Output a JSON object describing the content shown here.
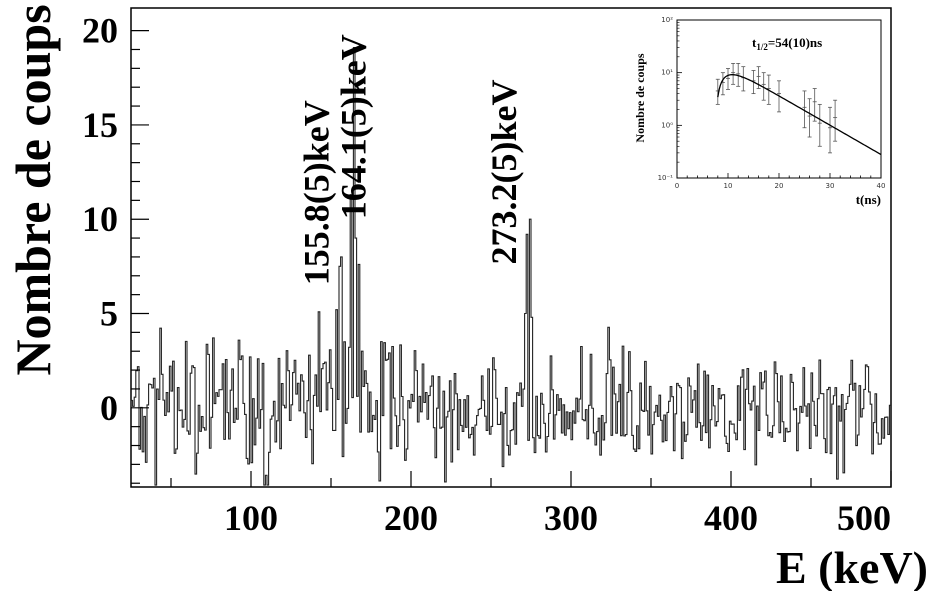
{
  "chart_data": [
    {
      "type": "histogram",
      "xlabel": "E (keV)",
      "ylabel": "Nombre de coups",
      "xlim": [
        25,
        500
      ],
      "ylim": [
        -4.2,
        21.2
      ],
      "x_ticks": [
        100,
        200,
        300,
        400,
        500
      ],
      "y_ticks": [
        0,
        5,
        10,
        15,
        20
      ],
      "grid": false,
      "annotations": [
        {
          "text": "155.8(5)keV",
          "x": 155.8,
          "y": 6.5
        },
        {
          "text": "164.1(5)keV",
          "x": 164.1,
          "y": 10.0
        },
        {
          "text": "273.2(5)keV",
          "x": 273.2,
          "y": 7.6
        }
      ],
      "peaks": [
        {
          "x": 152.5,
          "y": 5.2
        },
        {
          "x": 154.5,
          "y": 7.5
        },
        {
          "x": 155.8,
          "y": 8.0
        },
        {
          "x": 157.5,
          "y": 3.5
        },
        {
          "x": 161.5,
          "y": 11.3
        },
        {
          "x": 163.5,
          "y": 19.1
        },
        {
          "x": 164.8,
          "y": 9.0
        },
        {
          "x": 166.5,
          "y": 7.6
        },
        {
          "x": 168.5,
          "y": 3.0
        },
        {
          "x": 270.5,
          "y": 5.0
        },
        {
          "x": 272.0,
          "y": 9.2
        },
        {
          "x": 273.5,
          "y": 10.0
        },
        {
          "x": 275.0,
          "y": 4.8
        }
      ],
      "background_bin_width": 1,
      "background_seed": 20391,
      "background_sigma": 1.7
    },
    {
      "type": "scatter",
      "subtitle": "inset",
      "xlabel": "t(ns)",
      "ylabel": "Nombre de coups",
      "annotation": "t1/2=54(10)ns",
      "annotation_main": "t",
      "annotation_sub": "1/2",
      "annotation_rest": "=54(10)ns",
      "xlim": [
        0,
        40
      ],
      "ylim_log": [
        0.1,
        100
      ],
      "log_y": true,
      "x_ticks": [
        "0",
        "10",
        "20",
        "30",
        "40"
      ],
      "y_ticks": [
        "10⁻¹",
        "10⁰",
        "10¹",
        "10²"
      ],
      "points": [
        {
          "t": 8,
          "y": 4.5,
          "lo": 2.5,
          "hi": 7.5
        },
        {
          "t": 9,
          "y": 6.5,
          "lo": 3.8,
          "hi": 10
        },
        {
          "t": 10,
          "y": 7.8,
          "lo": 4.8,
          "hi": 12
        },
        {
          "t": 11,
          "y": 10,
          "lo": 6,
          "hi": 15
        },
        {
          "t": 12,
          "y": 9.5,
          "lo": 5.5,
          "hi": 15
        },
        {
          "t": 13,
          "y": 8,
          "lo": 4.5,
          "hi": 13
        },
        {
          "t": 15,
          "y": 7,
          "lo": 4,
          "hi": 11
        },
        {
          "t": 16,
          "y": 8.5,
          "lo": 5,
          "hi": 13
        },
        {
          "t": 17,
          "y": 6,
          "lo": 3,
          "hi": 10
        },
        {
          "t": 18,
          "y": 5,
          "lo": 2.5,
          "hi": 9
        },
        {
          "t": 20,
          "y": 4,
          "lo": 1.8,
          "hi": 7
        },
        {
          "t": 25,
          "y": 2.2,
          "lo": 0.9,
          "hi": 4.5
        },
        {
          "t": 26,
          "y": 1.5,
          "lo": 0.6,
          "hi": 3.2
        },
        {
          "t": 27,
          "y": 2.8,
          "lo": 1.2,
          "hi": 5
        },
        {
          "t": 28,
          "y": 1.1,
          "lo": 0.4,
          "hi": 2.5
        },
        {
          "t": 30,
          "y": 0.9,
          "lo": 0.3,
          "hi": 2.2
        },
        {
          "t": 31,
          "y": 1.4,
          "lo": 0.5,
          "hi": 3
        }
      ],
      "fit": {
        "rise_tau": 2.2,
        "t0": 7.5,
        "amplitude": 18,
        "decay_tau": 7.8
      }
    }
  ]
}
